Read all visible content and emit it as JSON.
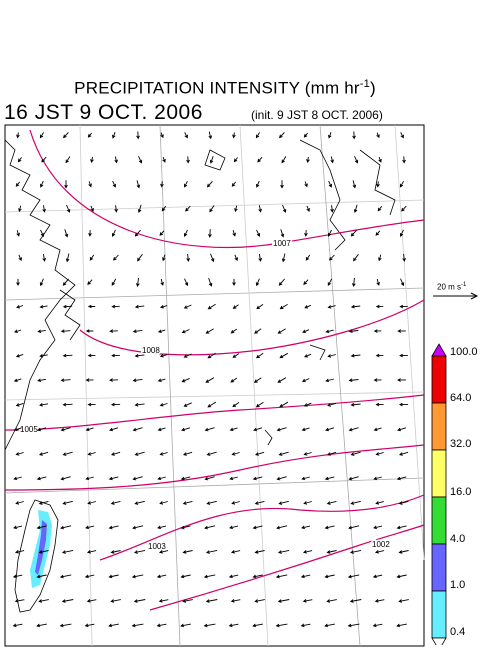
{
  "title_main": "PRECIPITATION INTENSITY (mm hr",
  "title_sup": "-1",
  "title_close": ")",
  "valid_time": "16 JST 9 OCT. 2006",
  "init_time": "(init. 9 JST 8 OCT. 2006)",
  "wind_reference": {
    "label": "20 m s",
    "label_sup": "-1"
  },
  "isobars": [
    {
      "label": "1007"
    },
    {
      "label": "1008"
    },
    {
      "label": "1005"
    },
    {
      "label": "1003"
    },
    {
      "label": "1002"
    }
  ],
  "colorbar": {
    "levels": [
      "100.0",
      "64.0",
      "32.0",
      "16.0",
      "4.0",
      "1.0",
      "0.4"
    ],
    "colors": [
      "#cc00ff",
      "#ee0000",
      "#ff9933",
      "#ffff66",
      "#33dd33",
      "#6666ff",
      "#66eeff",
      "#ffffff"
    ]
  },
  "colors": {
    "isobar": "#d0006a",
    "grid": "#aaaaaa",
    "coast": "#000000",
    "rain_light": "#66eeff",
    "rain_moderate": "#6666ff"
  }
}
